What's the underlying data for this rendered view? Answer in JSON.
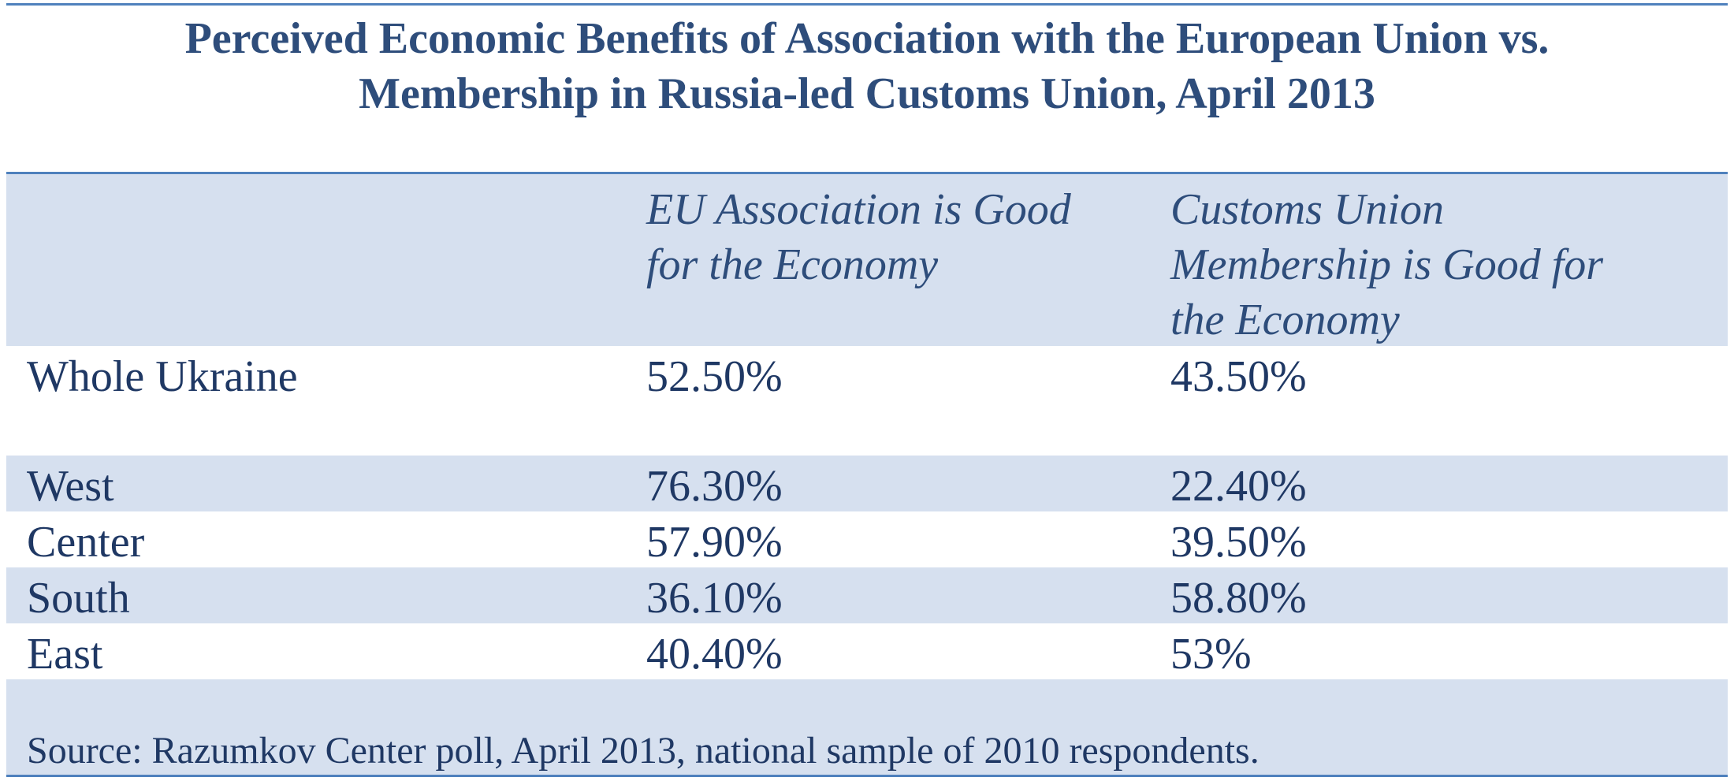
{
  "title": {
    "line1": "Perceived Economic Benefits of Association with the European Union vs.",
    "line2": "Membership in Russia-led Customs Union, April 2013"
  },
  "table": {
    "headers": {
      "col1": "",
      "col2_line1": "EU Association is Good",
      "col2_line2": "for the Economy",
      "col3_line1": "Customs Union",
      "col3_line2": "Membership is Good for",
      "col3_line3": "the Economy"
    },
    "rows": [
      {
        "region": "Whole Ukraine",
        "eu": "52.50%",
        "cu": "43.50%"
      },
      {
        "region": "West",
        "eu": "76.30%",
        "cu": "22.40%"
      },
      {
        "region": "Center",
        "eu": "57.90%",
        "cu": "39.50%"
      },
      {
        "region": "South",
        "eu": "36.10%",
        "cu": "58.80%"
      },
      {
        "region": "East",
        "eu": "40.40%",
        "cu": "53%"
      }
    ]
  },
  "source": "Source: Razumkov Center poll, April 2013, national sample of 2010 respondents.",
  "colors": {
    "text": "#1f3864",
    "title": "#2e4d7b",
    "rule": "#4f81bd",
    "shade": "#d6e0ef"
  }
}
